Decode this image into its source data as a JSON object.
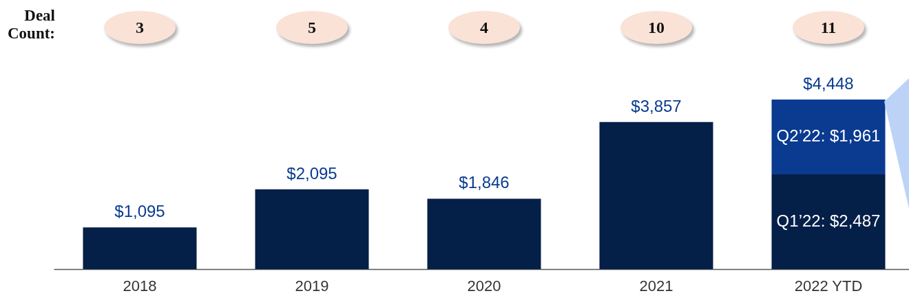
{
  "chart_data": {
    "type": "bar",
    "stacked": true,
    "categories": [
      "2018",
      "2019",
      "2020",
      "2021",
      "2022 YTD"
    ],
    "series": [
      {
        "color": "#041f48",
        "values": [
          1095,
          2095,
          1846,
          3857,
          2487
        ],
        "value_labels": [
          null,
          null,
          null,
          null,
          "Q1’22: $2,487"
        ]
      },
      {
        "color": "#0a3b91",
        "values": [
          null,
          null,
          null,
          null,
          1961
        ],
        "value_labels": [
          null,
          null,
          null,
          null,
          "Q2’22: $1,961"
        ]
      }
    ],
    "totals": [
      "$1,095",
      "$2,095",
      "$1,846",
      "$3,857",
      "$4,448"
    ],
    "annotations": [
      "Deal Count:",
      "3",
      "5",
      "4",
      "10",
      "11"
    ],
    "legend": false,
    "grid": false
  }
}
